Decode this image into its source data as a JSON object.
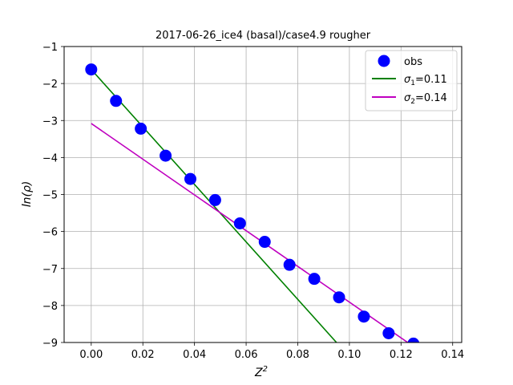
{
  "chart_data": {
    "type": "scatter",
    "title": "2017-06-26_ice4 (basal)/case4.9 rougher",
    "xlabel": "Z",
    "xlabel_sup": "2",
    "ylabel": "ln(ρ)",
    "xlim": [
      -0.0105,
      0.1435
    ],
    "ylim": [
      -9,
      -1
    ],
    "xticks": [
      0.0,
      0.02,
      0.04,
      0.06,
      0.08,
      0.1,
      0.12,
      0.14
    ],
    "xtick_labels": [
      "0.00",
      "0.02",
      "0.04",
      "0.06",
      "0.08",
      "0.10",
      "0.12",
      "0.14"
    ],
    "yticks": [
      -9,
      -8,
      -7,
      -6,
      -5,
      -4,
      -3,
      -2,
      -1
    ],
    "ytick_labels": [
      "−9",
      "−8",
      "−7",
      "−6",
      "−5",
      "−4",
      "−3",
      "−2",
      "−1"
    ],
    "grid": true,
    "legend_position": "top-right",
    "series": [
      {
        "name": "obs",
        "kind": "scatter",
        "color": "#0000ff",
        "x": [
          0.0,
          0.0096,
          0.0192,
          0.0288,
          0.0384,
          0.048,
          0.0576,
          0.0672,
          0.0768,
          0.0864,
          0.096,
          0.1056,
          0.1152,
          0.1248
        ],
        "y": [
          -1.62,
          -2.47,
          -3.22,
          -3.95,
          -4.58,
          -5.15,
          -5.78,
          -6.28,
          -6.9,
          -7.28,
          -7.78,
          -8.3,
          -8.75,
          -9.03
        ]
      },
      {
        "name_symbol": "σ",
        "name_sub": "1",
        "name_rest": "=0.11",
        "kind": "line",
        "color": "#008000",
        "x": [
          0.0,
          0.095
        ],
        "y": [
          -1.62,
          -9.0
        ]
      },
      {
        "name_symbol": "σ",
        "name_sub": "2",
        "name_rest": "=0.14",
        "kind": "line",
        "color": "#bf00bf",
        "x": [
          0.0,
          0.1226
        ],
        "y": [
          -3.08,
          -9.0
        ]
      }
    ]
  }
}
